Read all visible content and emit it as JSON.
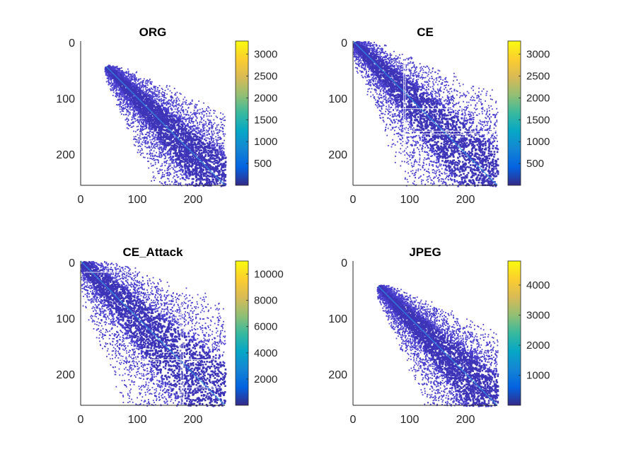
{
  "chart_data": [
    {
      "type": "heatmap",
      "title": "ORG",
      "xlabel": "",
      "ylabel": "",
      "xlim": [
        0,
        256
      ],
      "ylim": [
        0,
        256
      ],
      "y_reversed": true,
      "xticks": [
        "0",
        "100",
        "200"
      ],
      "yticks": [
        "0",
        "100",
        "200"
      ],
      "colorbar": {
        "range": [
          1,
          3300
        ],
        "ticks": [
          "500",
          "1000",
          "1500",
          "2000",
          "2500",
          "3000"
        ]
      },
      "description_shape": "diagonal-band",
      "band_start": 45,
      "band_width_start": 10,
      "band_width_end": 120,
      "extra_lines": false
    },
    {
      "type": "heatmap",
      "title": "CE",
      "xlabel": "",
      "ylabel": "",
      "xlim": [
        0,
        256
      ],
      "ylim": [
        0,
        256
      ],
      "y_reversed": true,
      "xticks": [
        "0",
        "100",
        "200"
      ],
      "yticks": [
        "0",
        "100",
        "200"
      ],
      "colorbar": {
        "range": [
          1,
          3300
        ],
        "ticks": [
          "500",
          "1000",
          "1500",
          "2000",
          "2500",
          "3000"
        ]
      },
      "description_shape": "diagonal-band",
      "band_start": 0,
      "band_width_start": 15,
      "band_width_end": 150,
      "extra_lines": true
    },
    {
      "type": "heatmap",
      "title": "CE_Attack",
      "xlabel": "",
      "ylabel": "",
      "xlim": [
        0,
        256
      ],
      "ylim": [
        0,
        256
      ],
      "y_reversed": true,
      "xticks": [
        "0",
        "100",
        "200"
      ],
      "yticks": [
        "0",
        "100",
        "200"
      ],
      "colorbar": {
        "range": [
          1,
          11000
        ],
        "ticks": [
          "2000",
          "4000",
          "6000",
          "8000",
          "10000"
        ]
      },
      "description_shape": "diagonal-band",
      "band_start": 0,
      "band_width_start": 25,
      "band_width_end": 170,
      "extra_lines": true
    },
    {
      "type": "heatmap",
      "title": "JPEG",
      "xlabel": "",
      "ylabel": "",
      "xlim": [
        0,
        256
      ],
      "ylim": [
        0,
        256
      ],
      "y_reversed": true,
      "xticks": [
        "0",
        "100",
        "200"
      ],
      "yticks": [
        "0",
        "100",
        "200"
      ],
      "colorbar": {
        "range": [
          1,
          4800
        ],
        "ticks": [
          "1000",
          "2000",
          "3000",
          "4000"
        ]
      },
      "description_shape": "diagonal-band",
      "band_start": 45,
      "band_width_start": 10,
      "band_width_end": 120,
      "extra_lines": false
    }
  ],
  "colors": {
    "parula": [
      "#352a87",
      "#0363e1",
      "#1485d4",
      "#06a7c6",
      "#38b99e",
      "#92bf73",
      "#d9ba56",
      "#fcce2e",
      "#f9fb0e"
    ],
    "band_color": "#4a3fcf",
    "band_dark": "#3d34b8",
    "diag_color": "#2f8fe0"
  }
}
